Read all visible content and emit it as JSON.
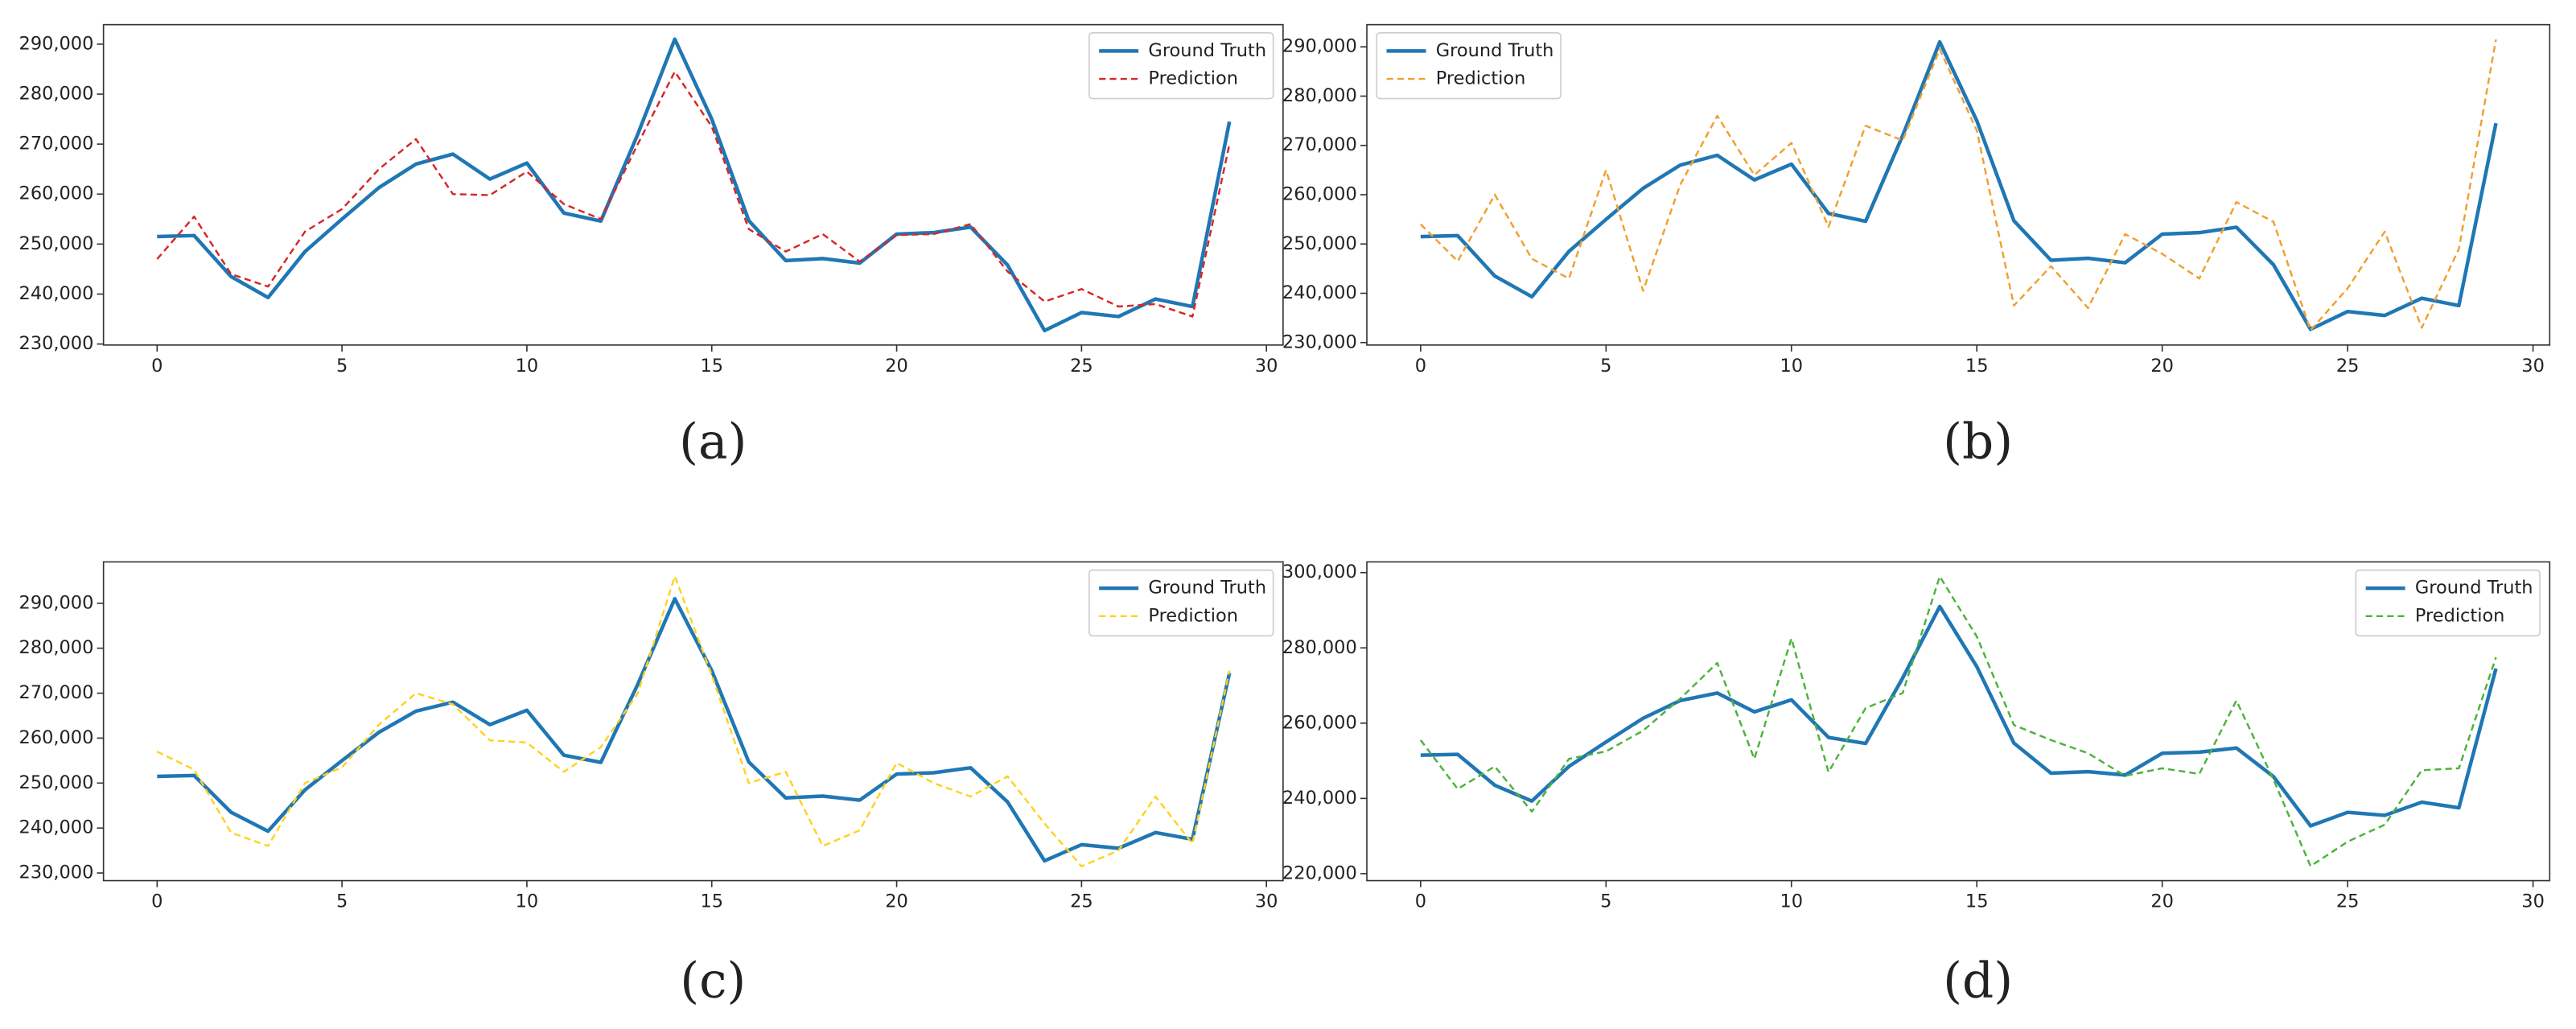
{
  "chart_data": [
    {
      "type": "line",
      "caption": "(a)",
      "x": [
        0,
        1,
        2,
        3,
        4,
        5,
        6,
        7,
        8,
        9,
        10,
        11,
        12,
        13,
        14,
        15,
        16,
        17,
        18,
        19,
        20,
        21,
        22,
        23,
        24,
        25,
        26,
        27,
        28,
        29
      ],
      "series": [
        {
          "name": "Ground Truth",
          "color": "#1f77b4",
          "style": "solid",
          "values": [
            251500,
            251700,
            243500,
            239300,
            248500,
            255000,
            261300,
            266000,
            268000,
            263000,
            266200,
            256200,
            254600,
            272000,
            291000,
            275000,
            254700,
            246700,
            247100,
            246200,
            252000,
            252300,
            253400,
            245800,
            232700,
            236300,
            235500,
            239000,
            237500,
            274500
          ]
        },
        {
          "name": "Prediction",
          "color": "#d62728",
          "style": "dashed",
          "values": [
            247000,
            255500,
            244000,
            241500,
            252500,
            257000,
            265000,
            271000,
            260000,
            259800,
            264500,
            258000,
            255000,
            270000,
            284500,
            273500,
            253000,
            248500,
            252000,
            246500,
            251800,
            252000,
            254000,
            244500,
            238500,
            241000,
            237500,
            238000,
            235500,
            270000
          ]
        }
      ],
      "xlim": [
        -1.45,
        30.45
      ],
      "ylim": [
        229800,
        293900
      ],
      "xticks": [
        0,
        5,
        10,
        15,
        20,
        25,
        30
      ],
      "yticks": [
        {
          "value": 230000,
          "label": "230,000"
        },
        {
          "value": 240000,
          "label": "240,000"
        },
        {
          "value": 250000,
          "label": "250,000"
        },
        {
          "value": 260000,
          "label": "260,000"
        },
        {
          "value": 270000,
          "label": "270,000"
        },
        {
          "value": 280000,
          "label": "280,000"
        },
        {
          "value": 290000,
          "label": "290,000"
        }
      ],
      "legend": "upper right"
    },
    {
      "type": "line",
      "caption": "(b)",
      "x": [
        0,
        1,
        2,
        3,
        4,
        5,
        6,
        7,
        8,
        9,
        10,
        11,
        12,
        13,
        14,
        15,
        16,
        17,
        18,
        19,
        20,
        21,
        22,
        23,
        24,
        25,
        26,
        27,
        28,
        29
      ],
      "series": [
        {
          "name": "Ground Truth",
          "color": "#1f77b4",
          "style": "solid",
          "values": [
            251500,
            251700,
            243500,
            239300,
            248500,
            255000,
            261300,
            266000,
            268000,
            263000,
            266200,
            256200,
            254600,
            272000,
            291000,
            275000,
            254700,
            246700,
            247100,
            246200,
            252000,
            252300,
            253400,
            245800,
            232700,
            236300,
            235500,
            239000,
            237500,
            274500
          ]
        },
        {
          "name": "Prediction",
          "color": "#f0a030",
          "style": "dashed",
          "values": [
            254000,
            246500,
            260000,
            247000,
            243000,
            265000,
            240500,
            262000,
            276000,
            264000,
            270500,
            253500,
            274000,
            271000,
            289500,
            273000,
            237500,
            245500,
            237000,
            252000,
            248000,
            243000,
            258500,
            254500,
            232500,
            241000,
            252500,
            233000,
            249000,
            291500
          ]
        }
      ],
      "xlim": [
        -1.45,
        30.45
      ],
      "ylim": [
        229500,
        294500
      ],
      "xticks": [
        0,
        5,
        10,
        15,
        20,
        25,
        30
      ],
      "yticks": [
        {
          "value": 230000,
          "label": "230,000"
        },
        {
          "value": 240000,
          "label": "240,000"
        },
        {
          "value": 250000,
          "label": "250,000"
        },
        {
          "value": 260000,
          "label": "260,000"
        },
        {
          "value": 270000,
          "label": "270,000"
        },
        {
          "value": 280000,
          "label": "280,000"
        },
        {
          "value": 290000,
          "label": "290,000"
        }
      ],
      "legend": "upper left"
    },
    {
      "type": "line",
      "caption": "(c)",
      "x": [
        0,
        1,
        2,
        3,
        4,
        5,
        6,
        7,
        8,
        9,
        10,
        11,
        12,
        13,
        14,
        15,
        16,
        17,
        18,
        19,
        20,
        21,
        22,
        23,
        24,
        25,
        26,
        27,
        28,
        29
      ],
      "series": [
        {
          "name": "Ground Truth",
          "color": "#1f77b4",
          "style": "solid",
          "values": [
            251500,
            251700,
            243500,
            239300,
            248500,
            255000,
            261300,
            266000,
            268000,
            263000,
            266200,
            256200,
            254600,
            272000,
            291000,
            275000,
            254700,
            246700,
            247100,
            246200,
            252000,
            252300,
            253400,
            245800,
            232700,
            236300,
            235500,
            239000,
            237500,
            274500
          ]
        },
        {
          "name": "Prediction",
          "color": "#ffd21f",
          "style": "dashed",
          "values": [
            257000,
            253000,
            239000,
            236000,
            250000,
            253500,
            263000,
            270000,
            267500,
            259500,
            259000,
            252500,
            258000,
            270000,
            296000,
            274000,
            250000,
            252500,
            236000,
            239500,
            254500,
            250000,
            247000,
            251500,
            241000,
            231500,
            235000,
            247000,
            236500,
            275000
          ]
        }
      ],
      "xlim": [
        -1.45,
        30.45
      ],
      "ylim": [
        228300,
        299200
      ],
      "xticks": [
        0,
        5,
        10,
        15,
        20,
        25,
        30
      ],
      "yticks": [
        {
          "value": 230000,
          "label": "230,000"
        },
        {
          "value": 240000,
          "label": "240,000"
        },
        {
          "value": 250000,
          "label": "250,000"
        },
        {
          "value": 260000,
          "label": "260,000"
        },
        {
          "value": 270000,
          "label": "270,000"
        },
        {
          "value": 280000,
          "label": "280,000"
        },
        {
          "value": 290000,
          "label": "290,000"
        }
      ],
      "legend": "upper right"
    },
    {
      "type": "line",
      "caption": "(d)",
      "x": [
        0,
        1,
        2,
        3,
        4,
        5,
        6,
        7,
        8,
        9,
        10,
        11,
        12,
        13,
        14,
        15,
        16,
        17,
        18,
        19,
        20,
        21,
        22,
        23,
        24,
        25,
        26,
        27,
        28,
        29
      ],
      "series": [
        {
          "name": "Ground Truth",
          "color": "#1f77b4",
          "style": "solid",
          "values": [
            251500,
            251700,
            243500,
            239300,
            248500,
            255000,
            261300,
            266000,
            268000,
            263000,
            266200,
            256200,
            254600,
            272000,
            291000,
            275000,
            254700,
            246700,
            247100,
            246200,
            252000,
            252300,
            253400,
            245800,
            232700,
            236300,
            235500,
            239000,
            237500,
            274500
          ]
        },
        {
          "name": "Prediction",
          "color": "#4cb33c",
          "style": "dashed",
          "values": [
            255500,
            242500,
            248500,
            236500,
            250500,
            252500,
            258000,
            266500,
            276000,
            250500,
            282500,
            247000,
            264000,
            268000,
            299000,
            283000,
            259500,
            255500,
            252000,
            246000,
            248000,
            246500,
            266000,
            245000,
            222000,
            228500,
            233000,
            247500,
            248000,
            277500
          ]
        }
      ],
      "xlim": [
        -1.45,
        30.45
      ],
      "ylim": [
        218150,
        302850
      ],
      "xticks": [
        0,
        5,
        10,
        15,
        20,
        25,
        30
      ],
      "yticks": [
        {
          "value": 220000,
          "label": "220,000"
        },
        {
          "value": 240000,
          "label": "240,000"
        },
        {
          "value": 260000,
          "label": "260,000"
        },
        {
          "value": 280000,
          "label": "280,000"
        },
        {
          "value": 300000,
          "label": "300,000"
        }
      ],
      "legend": "upper right"
    }
  ]
}
